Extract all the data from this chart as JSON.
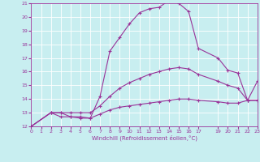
{
  "xlabel": "Windchill (Refroidissement éolien,°C)",
  "bg_color": "#c8eef0",
  "line_color": "#993399",
  "grid_color": "#ffffff",
  "xlim": [
    0,
    23
  ],
  "ylim": [
    12,
    21
  ],
  "yticks": [
    12,
    13,
    14,
    15,
    16,
    17,
    18,
    19,
    20,
    21
  ],
  "xticks": [
    0,
    1,
    2,
    3,
    4,
    5,
    6,
    7,
    8,
    9,
    10,
    11,
    12,
    13,
    14,
    15,
    16,
    17,
    19,
    20,
    21,
    22,
    23
  ],
  "curve1_x": [
    0,
    2,
    3,
    4,
    5,
    6,
    7,
    8,
    9,
    10,
    11,
    12,
    13,
    14,
    15,
    16,
    17,
    19,
    20,
    21,
    22,
    23
  ],
  "curve1_y": [
    12,
    13,
    13,
    12.7,
    12.7,
    12.6,
    14.2,
    17.5,
    18.5,
    19.5,
    20.3,
    20.6,
    20.7,
    21.2,
    21.0,
    20.4,
    17.7,
    17.0,
    16.1,
    15.9,
    13.9,
    15.3
  ],
  "curve2_x": [
    0,
    2,
    3,
    4,
    5,
    6,
    7,
    8,
    9,
    10,
    11,
    12,
    13,
    14,
    15,
    16,
    17,
    19,
    20,
    21,
    22,
    23
  ],
  "curve2_y": [
    12,
    13,
    13,
    13,
    13,
    13,
    13.5,
    14.2,
    14.8,
    15.2,
    15.5,
    15.8,
    16.0,
    16.2,
    16.3,
    16.2,
    15.8,
    15.3,
    15.0,
    14.8,
    13.9,
    13.9
  ],
  "curve3_x": [
    0,
    2,
    3,
    4,
    5,
    6,
    7,
    8,
    9,
    10,
    11,
    12,
    13,
    14,
    15,
    16,
    17,
    19,
    20,
    21,
    22,
    23
  ],
  "curve3_y": [
    12,
    13,
    12.7,
    12.7,
    12.6,
    12.6,
    12.9,
    13.2,
    13.4,
    13.5,
    13.6,
    13.7,
    13.8,
    13.9,
    14.0,
    14.0,
    13.9,
    13.8,
    13.7,
    13.7,
    13.9,
    13.9
  ]
}
